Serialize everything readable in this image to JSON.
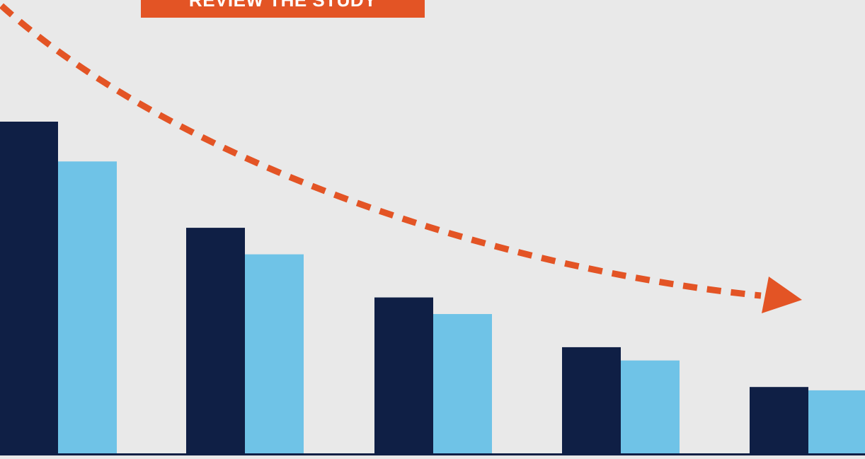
{
  "cta": {
    "label": "REVIEW THE STUDY"
  },
  "colors": {
    "background": "#e9e9e9",
    "series_dark": "#0f1f45",
    "series_light": "#6fc3e7",
    "accent": "#e35425"
  },
  "chart_data": {
    "type": "bar",
    "categories": [
      "",
      "",
      "",
      "",
      ""
    ],
    "series": [
      {
        "values": [
          100,
          68,
          47,
          32,
          20
        ]
      },
      {
        "values": [
          88,
          60,
          42,
          28,
          19
        ]
      }
    ],
    "ylim": [
      0,
      100
    ],
    "grid": false,
    "legend": "none",
    "trend_arrow": "decreasing"
  }
}
